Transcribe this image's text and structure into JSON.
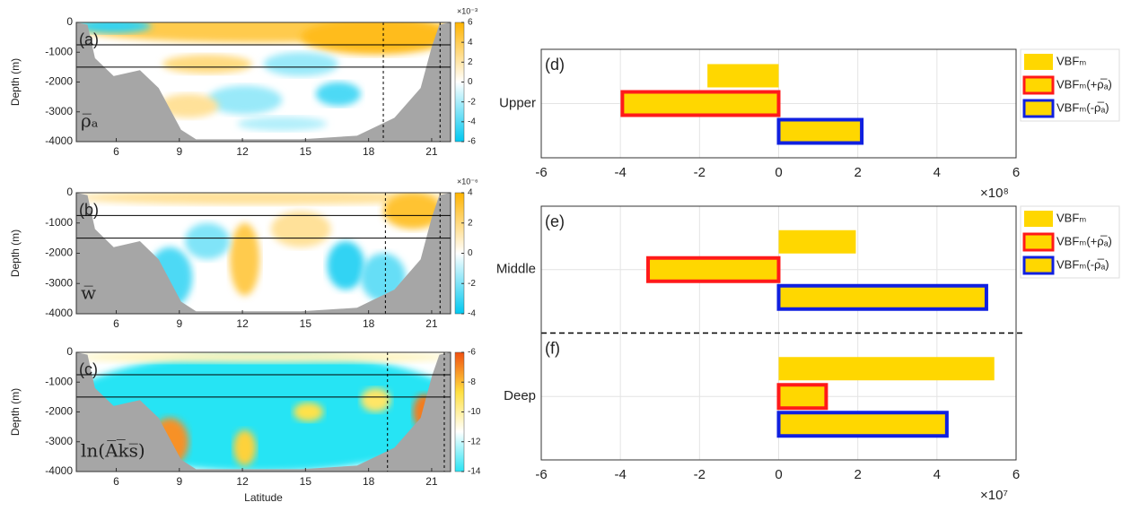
{
  "chart_data": [
    {
      "type": "contour",
      "label": "(a)",
      "annotation": "ρ̅ₐ",
      "ylabel": "Depth (m)",
      "xlim": [
        4.1,
        21.9
      ],
      "ylim": [
        -4000,
        0
      ],
      "xticks": [
        6,
        9,
        12,
        15,
        18,
        21
      ],
      "yticks": [
        0,
        -1000,
        -2000,
        -3000,
        -4000
      ],
      "hlines": [
        -750,
        -1500
      ],
      "vlines": [
        18.7,
        21.4
      ],
      "clim": [
        -6,
        6
      ],
      "cticks": [
        6,
        4,
        2,
        0,
        -2,
        -4,
        -6
      ],
      "cmultiplier": "×10⁻³",
      "colormap": [
        "#00c8f0",
        "#ffffff",
        "#ffb400"
      ]
    },
    {
      "type": "contour",
      "label": "(b)",
      "annotation": "w̅",
      "ylabel": "Depth (m)",
      "xlim": [
        4.1,
        21.9
      ],
      "ylim": [
        -4000,
        0
      ],
      "xticks": [
        6,
        9,
        12,
        15,
        18,
        21
      ],
      "yticks": [
        0,
        -1000,
        -2000,
        -3000,
        -4000
      ],
      "hlines": [
        -750,
        -1500
      ],
      "vlines": [
        18.8,
        21.4
      ],
      "clim": [
        -4,
        4
      ],
      "cticks": [
        4,
        2,
        0,
        -2,
        -4
      ],
      "cmultiplier": "×10⁻⁶",
      "colormap": [
        "#00c8f0",
        "#ffffff",
        "#ffb400"
      ]
    },
    {
      "type": "contour",
      "label": "(c)",
      "annotation": "ln(A̅k̅s̅)",
      "ylabel": "Depth (m)",
      "xlabel": "Latitude",
      "xlim": [
        4.1,
        21.9
      ],
      "ylim": [
        -4000,
        0
      ],
      "xticks": [
        6,
        9,
        12,
        15,
        18,
        21
      ],
      "yticks": [
        0,
        -1000,
        -2000,
        -3000,
        -4000
      ],
      "hlines": [
        -750,
        -1500
      ],
      "vlines": [
        18.9,
        21.6
      ],
      "clim": [
        -14,
        -6
      ],
      "cticks": [
        -6,
        -8,
        -10,
        -12,
        -14
      ],
      "colormap": [
        "#28e4f4",
        "#ffffff",
        "#ffe040",
        "#f05010"
      ]
    },
    {
      "type": "bar",
      "orientation": "horizontal",
      "panel_labels": [
        "(d)"
      ],
      "categories": [
        "Upper"
      ],
      "series": [
        {
          "name": "VBFₘ",
          "color": "#ffd700",
          "values": [
            -1.8
          ]
        },
        {
          "name": "VBFₘ(+ρ̅ₐ)",
          "color": "#ffd700",
          "edgecolor": "#ff1a1a",
          "values": [
            -3.95
          ]
        },
        {
          "name": "VBFₘ(-ρ̅ₐ)",
          "color": "#ffd700",
          "edgecolor": "#1020e0",
          "values": [
            2.1
          ]
        }
      ],
      "xlim": [
        -6,
        6
      ],
      "xticks": [
        -6,
        -4,
        -2,
        0,
        2,
        4,
        6
      ],
      "xmultiplier": "×10⁸",
      "grid": true,
      "legend": "outside right"
    },
    {
      "type": "bar",
      "orientation": "horizontal",
      "panel_labels": [
        "(e)",
        "(f)"
      ],
      "categories": [
        "Middle",
        "Deep"
      ],
      "series": [
        {
          "name": "VBFₘ",
          "color": "#ffd700",
          "values": [
            1.95,
            5.45
          ]
        },
        {
          "name": "VBFₘ(+ρ̅ₐ)",
          "color": "#ffd700",
          "edgecolor": "#ff1a1a",
          "values": [
            -3.3,
            1.2
          ]
        },
        {
          "name": "VBFₘ(-ρ̅ₐ)",
          "color": "#ffd700",
          "edgecolor": "#1020e0",
          "values": [
            5.25,
            4.25
          ]
        }
      ],
      "xlim": [
        -6,
        6
      ],
      "xticks": [
        -6,
        -4,
        -2,
        0,
        2,
        4,
        6
      ],
      "xmultiplier": "×10⁷",
      "grid": true,
      "separator": true,
      "legend": "outside right"
    }
  ]
}
